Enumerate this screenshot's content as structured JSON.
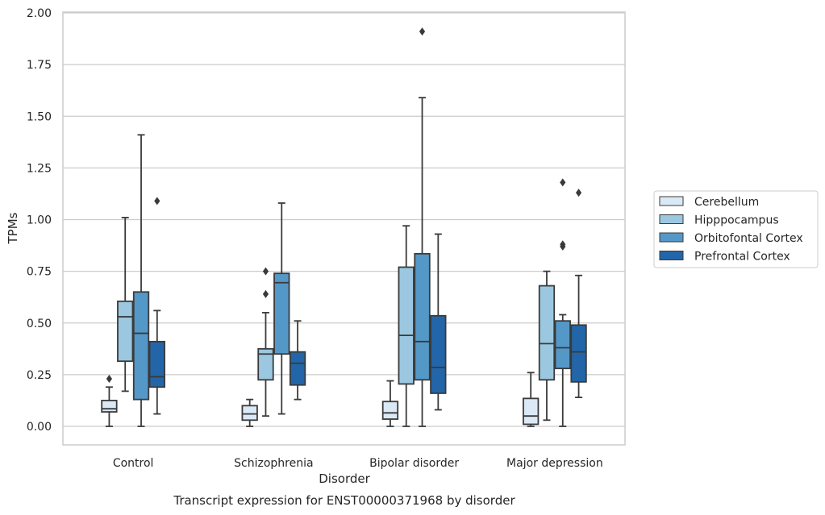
{
  "chart_data": {
    "type": "box",
    "title": "",
    "caption": "Transcript expression for ENST00000371968 by disorder",
    "xlabel": "Disorder",
    "ylabel": "TPMs",
    "ylim": [
      -0.09,
      2.0
    ],
    "yticks": [
      "0.00",
      "0.25",
      "0.50",
      "0.75",
      "1.00",
      "1.25",
      "1.50",
      "1.75",
      "2.00"
    ],
    "ytick_values": [
      0,
      0.25,
      0.5,
      0.75,
      1.0,
      1.25,
      1.5,
      1.75,
      2.0
    ],
    "grid": true,
    "legend_position": "right",
    "categories": [
      "Control",
      "Schizophrenia",
      "Bipolar disorder",
      "Major depression"
    ],
    "series": [
      {
        "name": "Cerebellum",
        "color": "#dbe9f6",
        "boxes": [
          {
            "whislo": 0.0,
            "q1": 0.07,
            "med": 0.085,
            "q3": 0.125,
            "whishi": 0.19,
            "fliers": [
              0.23
            ]
          },
          {
            "whislo": 0.0,
            "q1": 0.03,
            "med": 0.06,
            "q3": 0.1,
            "whishi": 0.13,
            "fliers": []
          },
          {
            "whislo": 0.0,
            "q1": 0.035,
            "med": 0.065,
            "q3": 0.12,
            "whishi": 0.22,
            "fliers": []
          },
          {
            "whislo": 0.0,
            "q1": 0.01,
            "med": 0.05,
            "q3": 0.135,
            "whishi": 0.26,
            "fliers": []
          }
        ]
      },
      {
        "name": "Hipppocampus",
        "color": "#9bc8e0",
        "boxes": [
          {
            "whislo": 0.17,
            "q1": 0.315,
            "med": 0.53,
            "q3": 0.605,
            "whishi": 1.01,
            "fliers": []
          },
          {
            "whislo": 0.05,
            "q1": 0.225,
            "med": 0.35,
            "q3": 0.375,
            "whishi": 0.55,
            "fliers": [
              0.64,
              0.75
            ]
          },
          {
            "whislo": 0.0,
            "q1": 0.205,
            "med": 0.44,
            "q3": 0.77,
            "whishi": 0.97,
            "fliers": []
          },
          {
            "whislo": 0.03,
            "q1": 0.225,
            "med": 0.4,
            "q3": 0.68,
            "whishi": 0.75,
            "fliers": []
          }
        ]
      },
      {
        "name": "Orbitofontal Cortex",
        "color": "#5498c8",
        "boxes": [
          {
            "whislo": 0.0,
            "q1": 0.13,
            "med": 0.45,
            "q3": 0.65,
            "whishi": 1.41,
            "fliers": []
          },
          {
            "whislo": 0.06,
            "q1": 0.35,
            "med": 0.695,
            "q3": 0.74,
            "whishi": 1.08,
            "fliers": []
          },
          {
            "whislo": 0.0,
            "q1": 0.225,
            "med": 0.41,
            "q3": 0.835,
            "whishi": 1.59,
            "fliers": [
              1.91
            ]
          },
          {
            "whislo": 0.0,
            "q1": 0.28,
            "med": 0.38,
            "q3": 0.51,
            "whishi": 0.54,
            "fliers": [
              0.87,
              0.88,
              1.18
            ]
          }
        ]
      },
      {
        "name": "Prefrontal Cortex",
        "color": "#2266a9",
        "boxes": [
          {
            "whislo": 0.06,
            "q1": 0.19,
            "med": 0.24,
            "q3": 0.41,
            "whishi": 0.56,
            "fliers": [
              1.09
            ]
          },
          {
            "whislo": 0.13,
            "q1": 0.2,
            "med": 0.305,
            "q3": 0.36,
            "whishi": 0.51,
            "fliers": []
          },
          {
            "whislo": 0.08,
            "q1": 0.16,
            "med": 0.285,
            "q3": 0.535,
            "whishi": 0.93,
            "fliers": []
          },
          {
            "whislo": 0.14,
            "q1": 0.215,
            "med": 0.36,
            "q3": 0.49,
            "whishi": 0.73,
            "fliers": [
              1.13
            ]
          }
        ]
      }
    ]
  }
}
